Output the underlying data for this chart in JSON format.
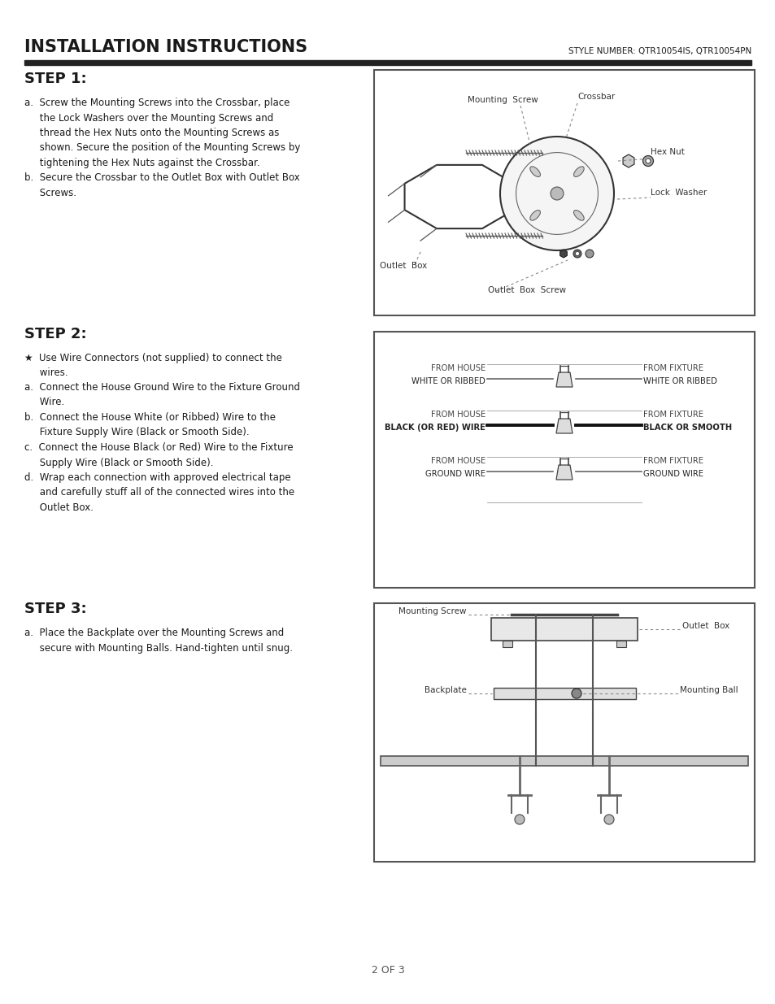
{
  "title": "INSTALLATION INSTRUCTIONS",
  "style_number": "STYLE NUMBER: QTR10054IS, QTR10054PN",
  "page_number": "2 OF 3",
  "background_color": "#ffffff",
  "text_color": "#1a1a1a",
  "step1": {
    "heading": "STEP 1:",
    "text": "a.  Screw the Mounting Screws into the Crossbar, place\n     the Lock Washers over the Mounting Screws and\n     thread the Hex Nuts onto the Mounting Screws as\n     shown. Secure the position of the Mounting Screws by\n     tightening the Hex Nuts against the Crossbar.\nb.  Secure the Crossbar to the Outlet Box with Outlet Box\n     Screws."
  },
  "step2": {
    "heading": "STEP 2:",
    "star_item": "★  Use Wire Connectors (not supplied) to connect the\n     wires.",
    "text": "a.  Connect the House Ground Wire to the Fixture Ground\n     Wire.\nb.  Connect the House White (or Ribbed) Wire to the\n     Fixture Supply Wire (Black or Smooth Side).\nc.  Connect the House Black (or Red) Wire to the Fixture\n     Supply Wire (Black or Smooth Side).\nd.  Wrap each connection with approved electrical tape\n     and carefully stuff all of the connected wires into the\n     Outlet Box."
  },
  "step3": {
    "heading": "STEP 3:",
    "text": "a.  Place the Backplate over the Mounting Screws and\n     secure with Mounting Balls. Hand-tighten until snug."
  }
}
